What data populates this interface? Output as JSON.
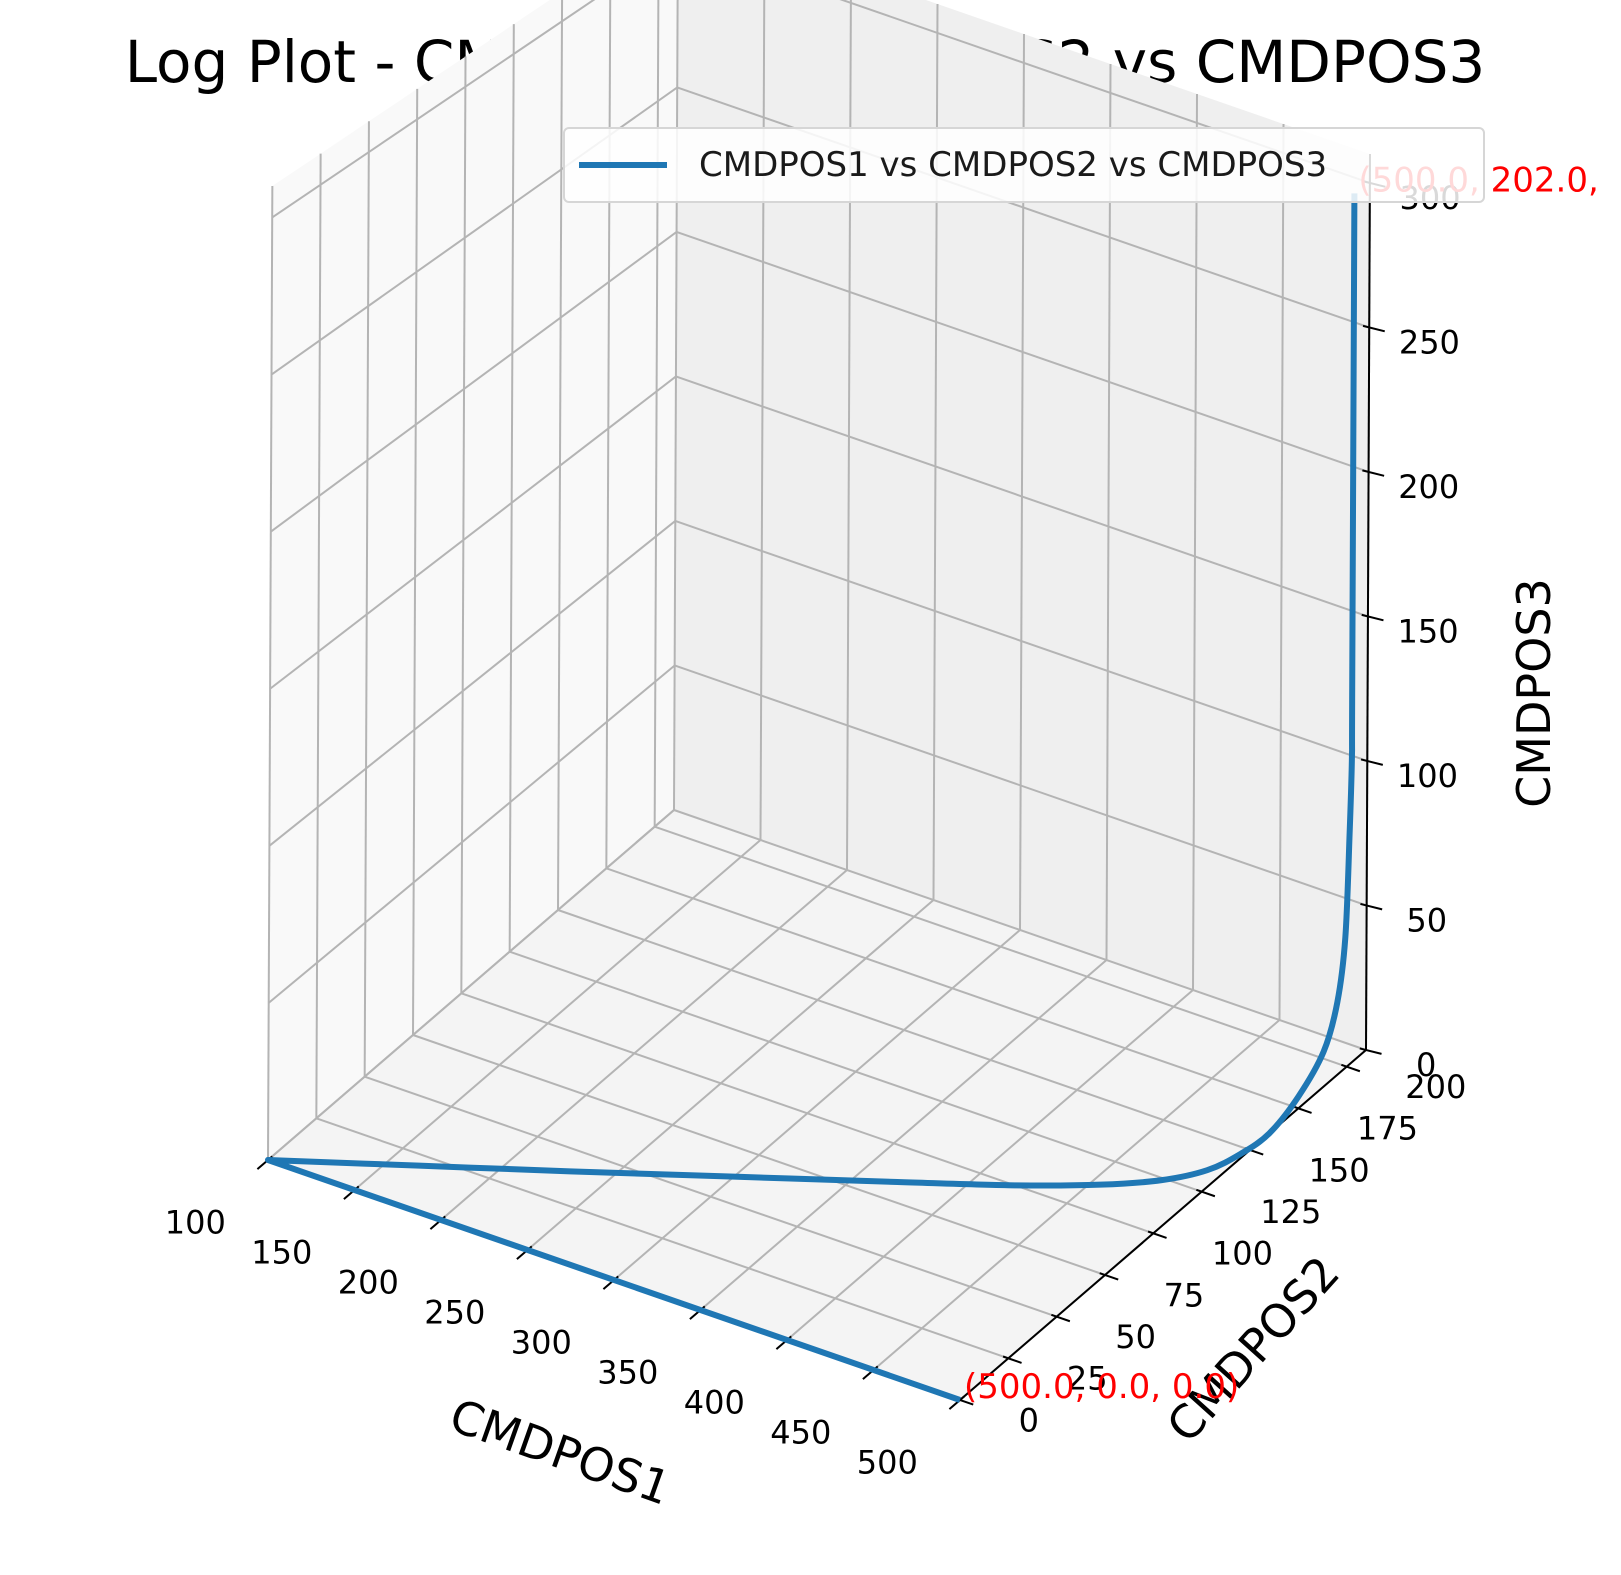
{
  "chart_data": {
    "type": "line3d",
    "title": "Log Plot - CMDPOS1 vs CMDPOS2 vs CMDPOS3",
    "xlabel": "CMDPOS1",
    "ylabel": "CMDPOS2",
    "zlabel": "CMDPOS3",
    "xlim": [
      100,
      500
    ],
    "ylim": [
      0,
      210
    ],
    "zlim": [
      0,
      310
    ],
    "x_ticks": [
      "100",
      "150",
      "200",
      "250",
      "300",
      "350",
      "400",
      "450",
      "500"
    ],
    "y_ticks": [
      "0",
      "25",
      "50",
      "75",
      "100",
      "125",
      "150",
      "175",
      "200"
    ],
    "z_ticks": [
      "0",
      "50",
      "100",
      "150",
      "200",
      "250",
      "300"
    ],
    "grid": true,
    "legend_position": "top-right",
    "series": [
      {
        "name": "CMDPOS1 vs CMDPOS2 vs CMDPOS3",
        "color": "#1f77b4",
        "points": [
          [
            500,
            0,
            0
          ],
          [
            100,
            0,
            0
          ],
          [
            165,
            20,
            0
          ],
          [
            230,
            40,
            0
          ],
          [
            300,
            62,
            0
          ],
          [
            370,
            84,
            0
          ],
          [
            420,
            100,
            0
          ],
          [
            455,
            113,
            0
          ],
          [
            478,
            124,
            0
          ],
          [
            492,
            135,
            0
          ],
          [
            498,
            147,
            0
          ],
          [
            500,
            160,
            0
          ],
          [
            500,
            175,
            4
          ],
          [
            500,
            188,
            12
          ],
          [
            500,
            195,
            25
          ],
          [
            500,
            199,
            45
          ],
          [
            500,
            201,
            80
          ],
          [
            500,
            202,
            105
          ],
          [
            500,
            202,
            130
          ],
          [
            500,
            202,
            300
          ]
        ]
      }
    ],
    "annotations": [
      {
        "text": "(500.0, 0.0, 0.0)",
        "x": 500,
        "y": 0,
        "z": 0,
        "color": "#ff0000"
      },
      {
        "text": "(500.0, 202.0,",
        "x": 500,
        "y": 202,
        "z": 300,
        "color": "#ff0000"
      }
    ]
  }
}
